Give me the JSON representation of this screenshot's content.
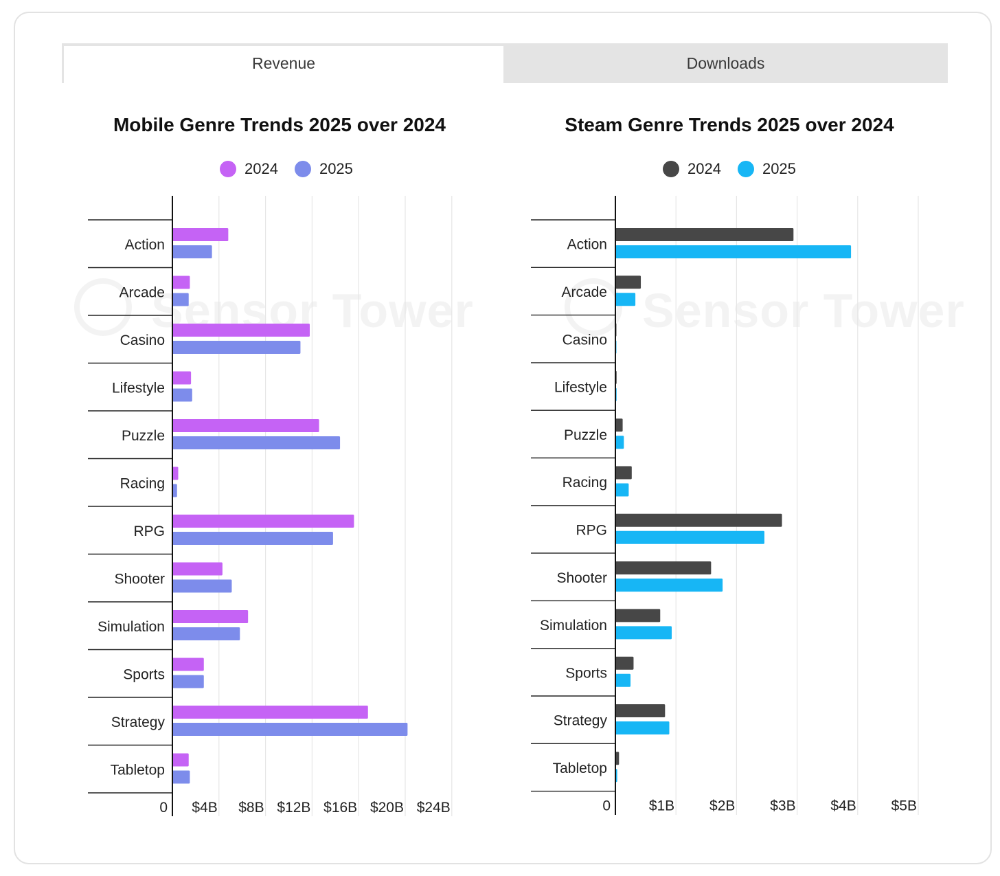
{
  "tabs": [
    {
      "label": "Revenue",
      "active": true
    },
    {
      "label": "Downloads",
      "active": false
    }
  ],
  "watermark": {
    "text": "Sensor Tower"
  },
  "chart_data": [
    {
      "type": "bar",
      "orientation": "horizontal",
      "title": "Mobile Genre Trends 2025 over 2024",
      "categories": [
        "Action",
        "Arcade",
        "Casino",
        "Lifestyle",
        "Puzzle",
        "Racing",
        "RPG",
        "Shooter",
        "Simulation",
        "Sports",
        "Strategy",
        "Tabletop"
      ],
      "series": [
        {
          "name": "2024",
          "color": "#c563f5",
          "values": [
            4.8,
            1.5,
            11.8,
            1.6,
            12.6,
            0.5,
            15.6,
            4.3,
            6.5,
            2.7,
            16.8,
            1.4
          ]
        },
        {
          "name": "2025",
          "color": "#7d8ceb",
          "values": [
            3.4,
            1.4,
            11.0,
            1.7,
            14.4,
            0.4,
            13.8,
            5.1,
            5.8,
            2.7,
            20.2,
            1.5
          ]
        }
      ],
      "xlim": [
        0,
        24
      ],
      "xticks": [
        0,
        4,
        8,
        12,
        16,
        20,
        24
      ],
      "xtick_labels": [
        "0",
        "$4B",
        "$8B",
        "$12B",
        "$16B",
        "$20B",
        "$24B"
      ],
      "legend": "top-center",
      "grid": true
    },
    {
      "type": "bar",
      "orientation": "horizontal",
      "title": "Steam Genre Trends 2025 over 2024",
      "categories": [
        "Action",
        "Arcade",
        "Casino",
        "Lifestyle",
        "Puzzle",
        "Racing",
        "RPG",
        "Shooter",
        "Simulation",
        "Sports",
        "Strategy",
        "Tabletop"
      ],
      "series": [
        {
          "name": "2024",
          "color": "#474747",
          "values": [
            2.94,
            0.42,
            0.0,
            0.02,
            0.12,
            0.27,
            2.75,
            1.58,
            0.74,
            0.3,
            0.82,
            0.06
          ]
        },
        {
          "name": "2025",
          "color": "#17b6f5",
          "values": [
            3.89,
            0.33,
            0.01,
            0.02,
            0.14,
            0.22,
            2.46,
            1.77,
            0.93,
            0.25,
            0.89,
            0.03
          ]
        }
      ],
      "xlim": [
        0,
        5
      ],
      "xticks": [
        0,
        1,
        2,
        3,
        4,
        5
      ],
      "xtick_labels": [
        "0",
        "$1B",
        "$2B",
        "$3B",
        "$4B",
        "$5B"
      ],
      "legend": "top-center",
      "grid": true
    }
  ]
}
